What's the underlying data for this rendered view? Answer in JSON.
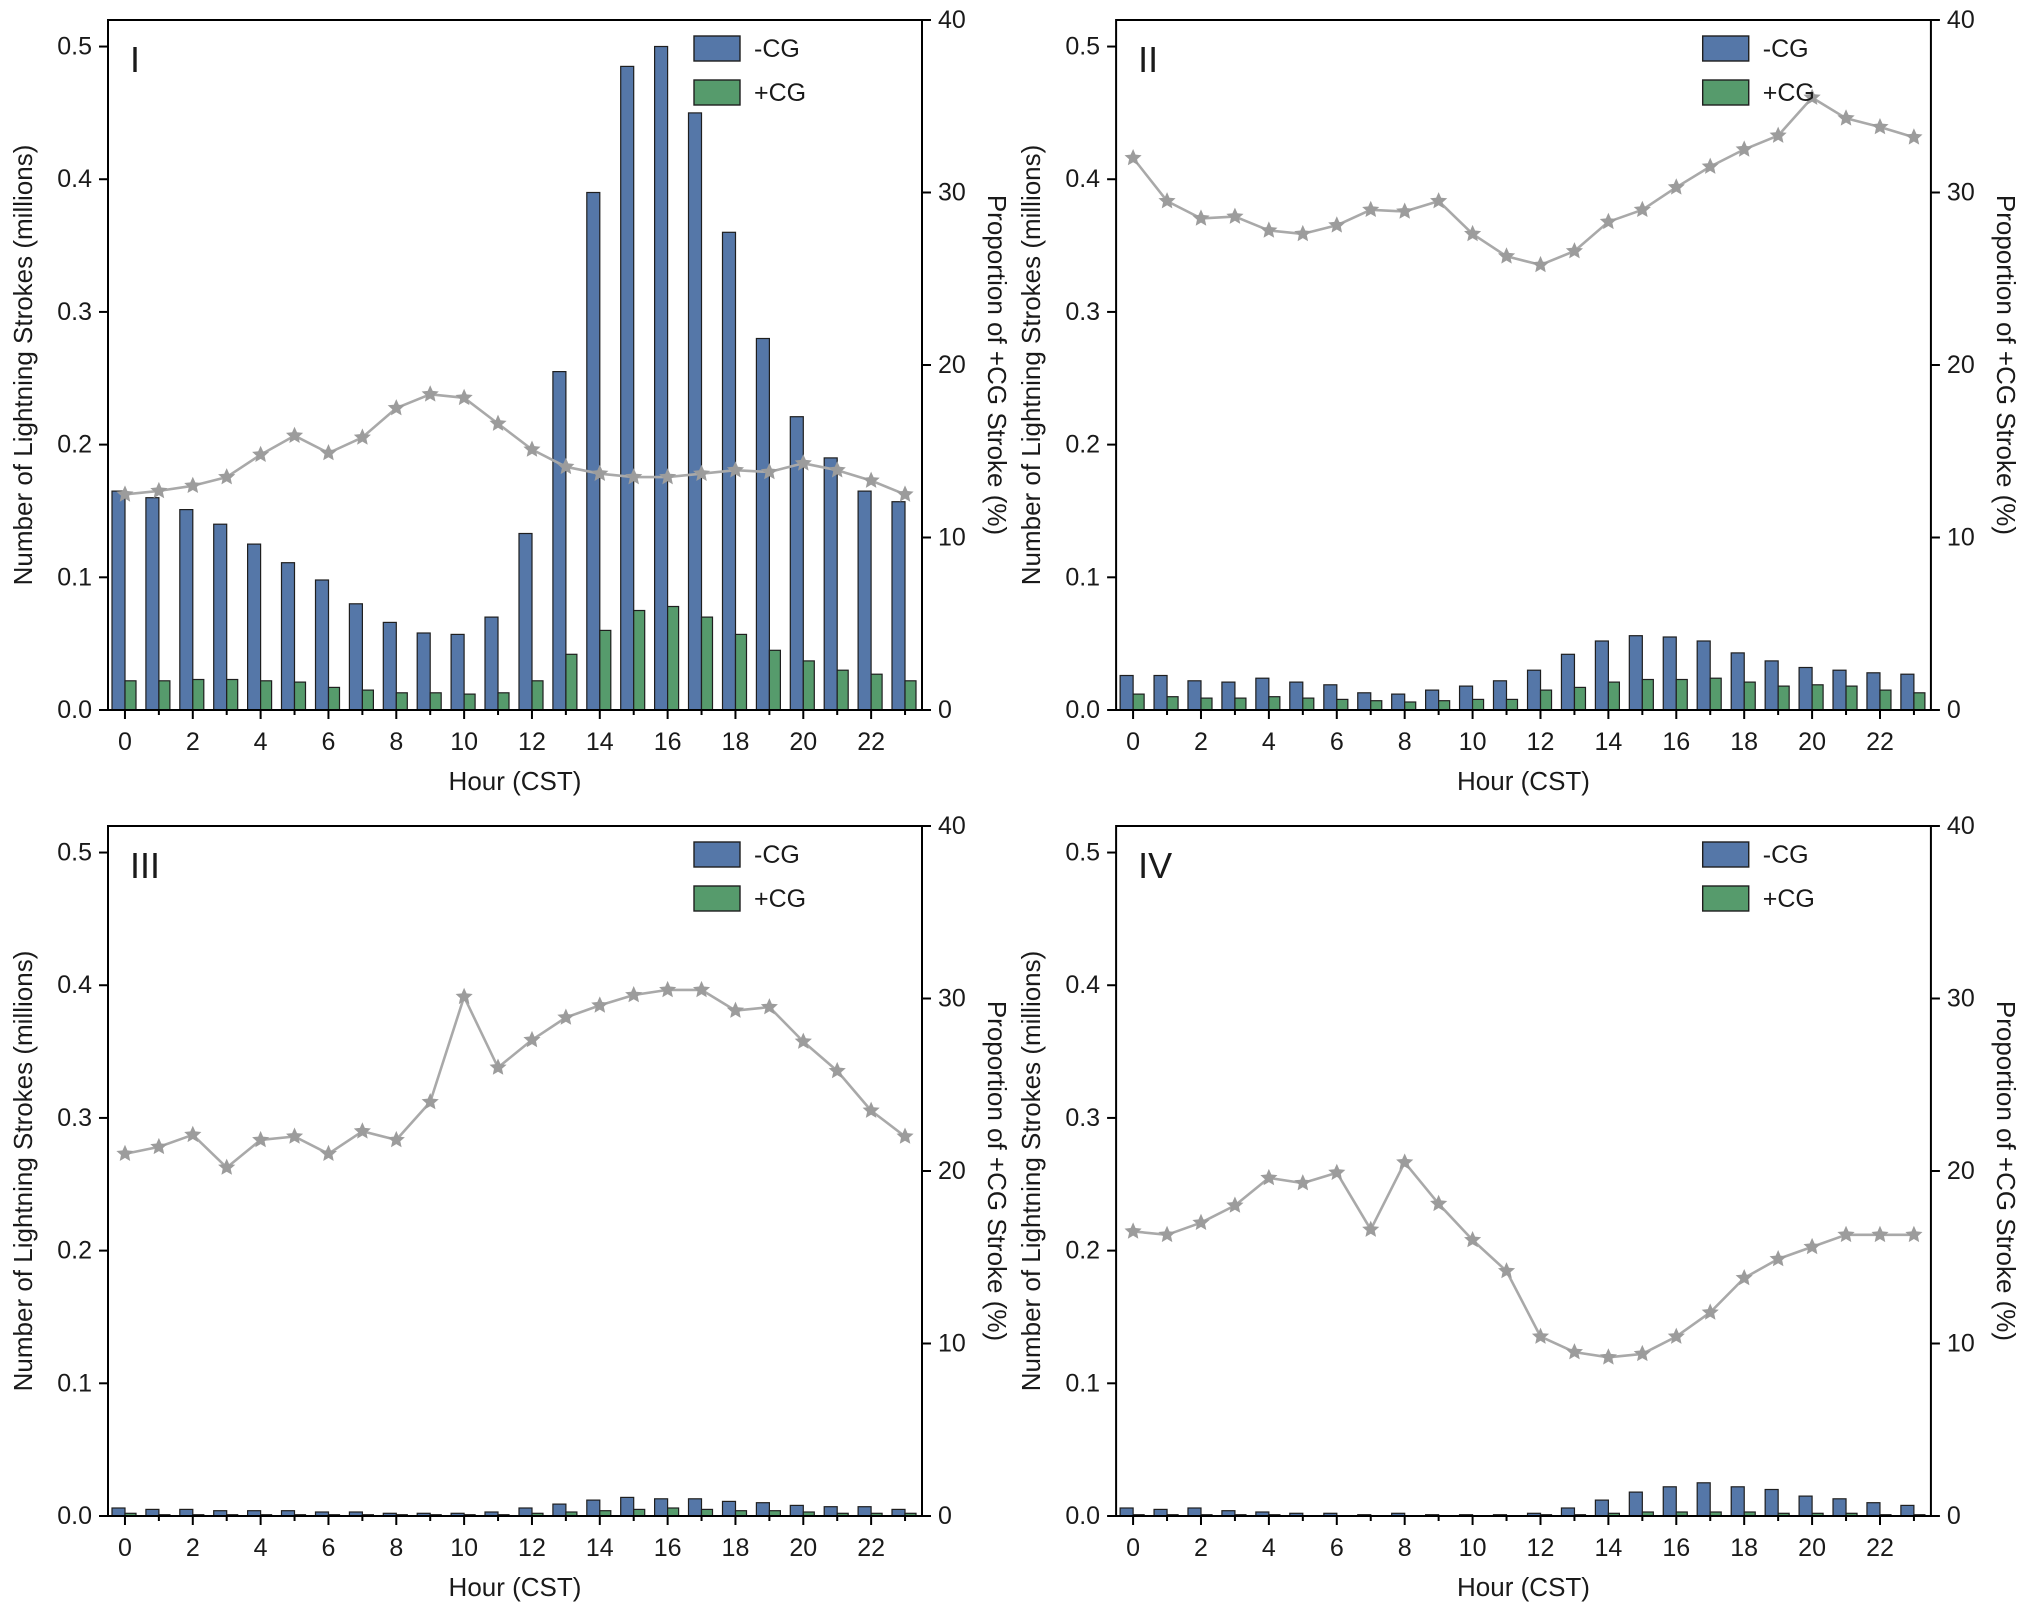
{
  "figure": {
    "colors": {
      "neg_cg": "#5577a8",
      "pos_cg": "#569b6c",
      "bar_edge": "#1f1f1f",
      "line": "#a9a9a9",
      "marker": "#9c9c9c",
      "axis": "#000000",
      "text": "#1a1a1a"
    }
  },
  "chart_data": [
    {
      "type": "bar",
      "panel_label": "I",
      "xlabel": "Hour (CST)",
      "ylabel_left": "Number of Lightning Strokes (millions)",
      "ylabel_right": "Proportion of +CG Stroke (%)",
      "x": [
        0,
        1,
        2,
        3,
        4,
        5,
        6,
        7,
        8,
        9,
        10,
        11,
        12,
        13,
        14,
        15,
        16,
        17,
        18,
        19,
        20,
        21,
        22,
        23
      ],
      "x_tick_labels": [
        0,
        2,
        4,
        6,
        8,
        10,
        12,
        14,
        16,
        18,
        20,
        22
      ],
      "left_ticks": [
        0,
        0.1,
        0.2,
        0.3,
        0.4,
        0.5
      ],
      "right_ticks": [
        0,
        10,
        20,
        30,
        40
      ],
      "left_max": 0.52,
      "right_max": 40,
      "legend": [
        "-CG",
        "+CG"
      ],
      "series": [
        {
          "name": "-CG",
          "axis": "left",
          "values": [
            0.165,
            0.16,
            0.151,
            0.14,
            0.125,
            0.111,
            0.098,
            0.08,
            0.066,
            0.058,
            0.057,
            0.07,
            0.133,
            0.255,
            0.39,
            0.485,
            0.5,
            0.45,
            0.36,
            0.28,
            0.221,
            0.19,
            0.165,
            0.157
          ]
        },
        {
          "name": "+CG",
          "axis": "left",
          "values": [
            0.022,
            0.022,
            0.023,
            0.023,
            0.022,
            0.021,
            0.017,
            0.015,
            0.013,
            0.013,
            0.012,
            0.013,
            0.022,
            0.042,
            0.06,
            0.075,
            0.078,
            0.07,
            0.057,
            0.045,
            0.037,
            0.03,
            0.027,
            0.022
          ]
        }
      ],
      "line_series": {
        "name": "Proportion of +CG Stroke (%)",
        "axis": "right",
        "values": [
          12.5,
          12.7,
          13.0,
          13.5,
          14.8,
          15.9,
          14.9,
          15.8,
          17.5,
          18.3,
          18.1,
          16.6,
          15.1,
          14.1,
          13.7,
          13.5,
          13.5,
          13.7,
          13.9,
          13.8,
          14.3,
          13.9,
          13.3,
          12.5
        ]
      }
    },
    {
      "type": "bar",
      "panel_label": "II",
      "xlabel": "Hour (CST)",
      "ylabel_left": "Number of Lightning Strokes (millions)",
      "ylabel_right": "Proportion of +CG Stroke (%)",
      "x": [
        0,
        1,
        2,
        3,
        4,
        5,
        6,
        7,
        8,
        9,
        10,
        11,
        12,
        13,
        14,
        15,
        16,
        17,
        18,
        19,
        20,
        21,
        22,
        23
      ],
      "x_tick_labels": [
        0,
        2,
        4,
        6,
        8,
        10,
        12,
        14,
        16,
        18,
        20,
        22
      ],
      "left_ticks": [
        0,
        0.1,
        0.2,
        0.3,
        0.4,
        0.5
      ],
      "right_ticks": [
        0,
        10,
        20,
        30,
        40
      ],
      "left_max": 0.52,
      "right_max": 40,
      "legend": [
        "-CG",
        "+CG"
      ],
      "series": [
        {
          "name": "-CG",
          "axis": "left",
          "values": [
            0.026,
            0.026,
            0.022,
            0.021,
            0.024,
            0.021,
            0.019,
            0.013,
            0.012,
            0.015,
            0.018,
            0.022,
            0.03,
            0.042,
            0.052,
            0.056,
            0.055,
            0.052,
            0.043,
            0.037,
            0.032,
            0.03,
            0.028,
            0.027
          ]
        },
        {
          "name": "+CG",
          "axis": "left",
          "values": [
            0.012,
            0.01,
            0.009,
            0.009,
            0.01,
            0.009,
            0.008,
            0.007,
            0.006,
            0.007,
            0.008,
            0.008,
            0.015,
            0.017,
            0.021,
            0.023,
            0.023,
            0.024,
            0.021,
            0.018,
            0.019,
            0.018,
            0.015,
            0.013
          ]
        }
      ],
      "line_series": {
        "name": "Proportion of +CG Stroke (%)",
        "axis": "right",
        "values": [
          32.0,
          29.5,
          28.5,
          28.6,
          27.8,
          27.6,
          28.1,
          29.0,
          28.9,
          29.5,
          27.6,
          26.3,
          25.8,
          26.6,
          28.3,
          29.0,
          30.3,
          31.5,
          32.5,
          33.3,
          35.5,
          34.3,
          33.8,
          33.2
        ]
      }
    },
    {
      "type": "bar",
      "panel_label": "III",
      "xlabel": "Hour (CST)",
      "ylabel_left": "Number of Lightning Strokes (millions)",
      "ylabel_right": "Proportion of +CG Stroke (%)",
      "x": [
        0,
        1,
        2,
        3,
        4,
        5,
        6,
        7,
        8,
        9,
        10,
        11,
        12,
        13,
        14,
        15,
        16,
        17,
        18,
        19,
        20,
        21,
        22,
        23
      ],
      "x_tick_labels": [
        0,
        2,
        4,
        6,
        8,
        10,
        12,
        14,
        16,
        18,
        20,
        22
      ],
      "left_ticks": [
        0,
        0.1,
        0.2,
        0.3,
        0.4,
        0.5
      ],
      "right_ticks": [
        0,
        10,
        20,
        30,
        40
      ],
      "left_max": 0.52,
      "right_max": 40,
      "legend": [
        "-CG",
        "+CG"
      ],
      "series": [
        {
          "name": "-CG",
          "axis": "left",
          "values": [
            0.006,
            0.005,
            0.005,
            0.004,
            0.004,
            0.004,
            0.003,
            0.003,
            0.002,
            0.002,
            0.002,
            0.003,
            0.006,
            0.009,
            0.012,
            0.014,
            0.013,
            0.013,
            0.011,
            0.01,
            0.008,
            0.007,
            0.007,
            0.005
          ]
        },
        {
          "name": "+CG",
          "axis": "left",
          "values": [
            0.002,
            0.001,
            0.001,
            0.001,
            0.001,
            0.001,
            0.001,
            0.001,
            0.001,
            0.001,
            0.001,
            0.001,
            0.002,
            0.003,
            0.004,
            0.005,
            0.006,
            0.005,
            0.004,
            0.004,
            0.003,
            0.002,
            0.002,
            0.002
          ]
        }
      ],
      "line_series": {
        "name": "Proportion of +CG Stroke (%)",
        "axis": "right",
        "values": [
          21.0,
          21.4,
          22.1,
          20.2,
          21.8,
          22.0,
          21.0,
          22.3,
          21.8,
          24.0,
          30.1,
          26.0,
          27.6,
          28.9,
          29.6,
          30.2,
          30.5,
          30.5,
          29.3,
          29.5,
          27.5,
          25.8,
          23.5,
          22.0
        ]
      }
    },
    {
      "type": "bar",
      "panel_label": "IV",
      "xlabel": "Hour (CST)",
      "ylabel_left": "Number of Lightning Strokes (millions)",
      "ylabel_right": "Proportion of +CG Stroke (%)",
      "x": [
        0,
        1,
        2,
        3,
        4,
        5,
        6,
        7,
        8,
        9,
        10,
        11,
        12,
        13,
        14,
        15,
        16,
        17,
        18,
        19,
        20,
        21,
        22,
        23
      ],
      "x_tick_labels": [
        0,
        2,
        4,
        6,
        8,
        10,
        12,
        14,
        16,
        18,
        20,
        22
      ],
      "left_ticks": [
        0,
        0.1,
        0.2,
        0.3,
        0.4,
        0.5
      ],
      "right_ticks": [
        0,
        10,
        20,
        30,
        40
      ],
      "left_max": 0.52,
      "right_max": 40,
      "legend": [
        "-CG",
        "+CG"
      ],
      "series": [
        {
          "name": "-CG",
          "axis": "left",
          "values": [
            0.006,
            0.005,
            0.006,
            0.004,
            0.003,
            0.002,
            0.002,
            0.001,
            0.002,
            0.001,
            0.001,
            0.001,
            0.002,
            0.006,
            0.012,
            0.018,
            0.022,
            0.025,
            0.022,
            0.02,
            0.015,
            0.013,
            0.01,
            0.008
          ]
        },
        {
          "name": "+CG",
          "axis": "left",
          "values": [
            0.001,
            0.001,
            0.001,
            0.001,
            0.001,
            0,
            0,
            0,
            0,
            0,
            0,
            0,
            0.001,
            0.001,
            0.002,
            0.003,
            0.003,
            0.003,
            0.003,
            0.002,
            0.002,
            0.002,
            0.001,
            0.001
          ]
        }
      ],
      "line_series": {
        "name": "Proportion of +CG Stroke (%)",
        "axis": "right",
        "values": [
          16.5,
          16.3,
          17.0,
          18.0,
          19.6,
          19.3,
          19.9,
          16.6,
          20.5,
          18.1,
          16.0,
          14.2,
          10.4,
          9.5,
          9.2,
          9.4,
          10.4,
          11.8,
          13.8,
          14.9,
          15.6,
          16.3,
          16.3,
          16.3
        ]
      }
    }
  ]
}
